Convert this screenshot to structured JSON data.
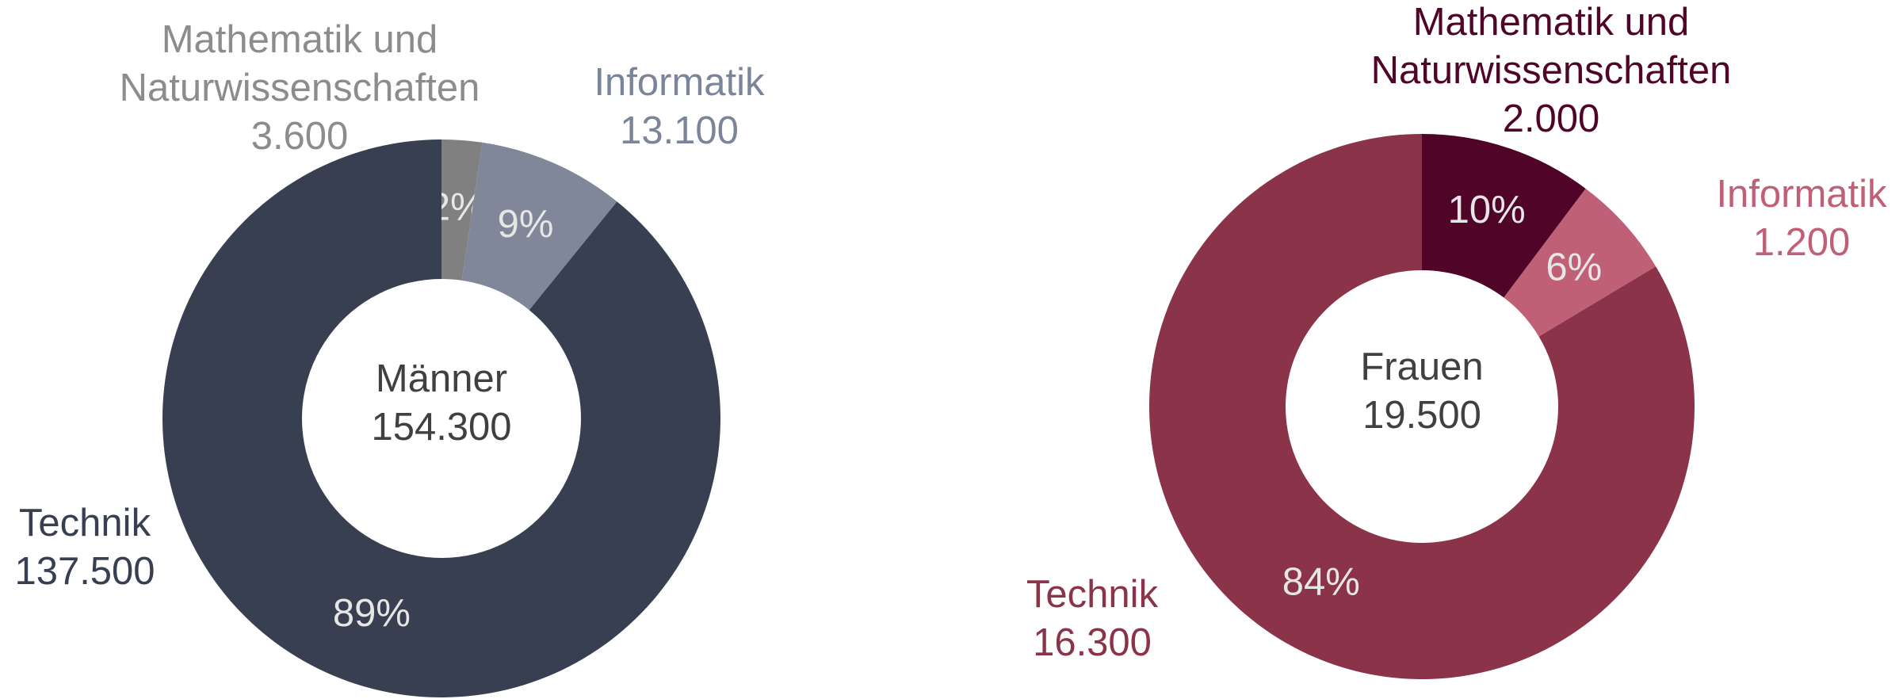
{
  "chart_data": [
    {
      "type": "donut",
      "center_label": "Männer",
      "total": 154300,
      "total_label": "154.300",
      "categories": [
        "Mathematik und Naturwissenschaften",
        "Informatik",
        "Technik"
      ],
      "values": [
        3600,
        13100,
        137500
      ],
      "value_labels": [
        "3.600",
        "13.100",
        "137.500"
      ],
      "percentages": [
        2,
        9,
        89
      ],
      "percentage_labels": [
        "2%",
        "9%",
        "89%"
      ],
      "colors": [
        "#808080",
        "#7f8799",
        "#373f51"
      ],
      "label_colors": [
        "#8c8c8c",
        "#7a8599",
        "#373f51"
      ]
    },
    {
      "type": "donut",
      "center_label": "Frauen",
      "total": 19500,
      "total_label": "19.500",
      "categories": [
        "Mathematik und Naturwissenschaften",
        "Informatik",
        "Technik"
      ],
      "values": [
        2000,
        1200,
        16300
      ],
      "value_labels": [
        "2.000",
        "1.200",
        "16.300"
      ],
      "percentages": [
        10,
        6,
        84
      ],
      "percentage_labels": [
        "10%",
        "6%",
        "84%"
      ],
      "colors": [
        "#4f0428",
        "#c06077",
        "#8a3349"
      ],
      "label_colors": [
        "#4f0428",
        "#c06077",
        "#8a3349"
      ]
    }
  ]
}
